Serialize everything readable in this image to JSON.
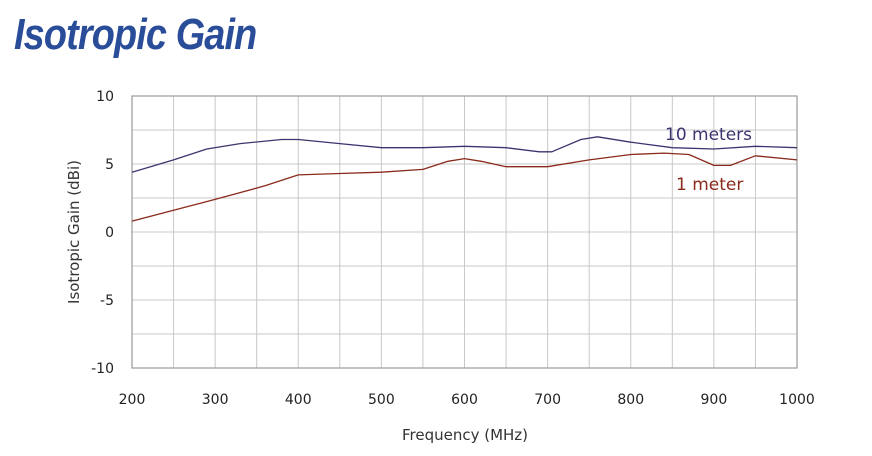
{
  "page": {
    "title": "Isotropic Gain"
  },
  "chart_data": {
    "type": "line",
    "title": "Isotropic Gain",
    "xlabel": "Frequency (MHz)",
    "ylabel": "Isotropic Gain (dBi)",
    "xlim": [
      200,
      1000
    ],
    "ylim": [
      -10,
      10
    ],
    "x_ticks": [
      200,
      300,
      400,
      500,
      600,
      700,
      800,
      900,
      1000
    ],
    "y_ticks": [
      -10,
      -5,
      0,
      5,
      10
    ],
    "x_minor_step": 50,
    "y_minor_step": 2.5,
    "grid": true,
    "series": [
      {
        "name": "10 meters",
        "color": "#3a356e",
        "points": [
          [
            200,
            4.4
          ],
          [
            250,
            5.3
          ],
          [
            290,
            6.1
          ],
          [
            330,
            6.5
          ],
          [
            380,
            6.8
          ],
          [
            400,
            6.8
          ],
          [
            450,
            6.5
          ],
          [
            500,
            6.2
          ],
          [
            550,
            6.2
          ],
          [
            600,
            6.3
          ],
          [
            650,
            6.2
          ],
          [
            690,
            5.9
          ],
          [
            705,
            5.9
          ],
          [
            740,
            6.8
          ],
          [
            760,
            7.0
          ],
          [
            800,
            6.6
          ],
          [
            850,
            6.2
          ],
          [
            900,
            6.1
          ],
          [
            950,
            6.3
          ],
          [
            1000,
            6.2
          ]
        ]
      },
      {
        "name": "1 meter",
        "color": "#8a2a1a",
        "points": [
          [
            200,
            0.8
          ],
          [
            250,
            1.6
          ],
          [
            300,
            2.4
          ],
          [
            360,
            3.4
          ],
          [
            400,
            4.2
          ],
          [
            450,
            4.3
          ],
          [
            500,
            4.4
          ],
          [
            550,
            4.6
          ],
          [
            580,
            5.2
          ],
          [
            600,
            5.4
          ],
          [
            620,
            5.2
          ],
          [
            650,
            4.8
          ],
          [
            700,
            4.8
          ],
          [
            750,
            5.3
          ],
          [
            800,
            5.7
          ],
          [
            840,
            5.8
          ],
          [
            870,
            5.7
          ],
          [
            900,
            4.9
          ],
          [
            920,
            4.9
          ],
          [
            950,
            5.6
          ],
          [
            1000,
            5.3
          ]
        ]
      }
    ]
  }
}
